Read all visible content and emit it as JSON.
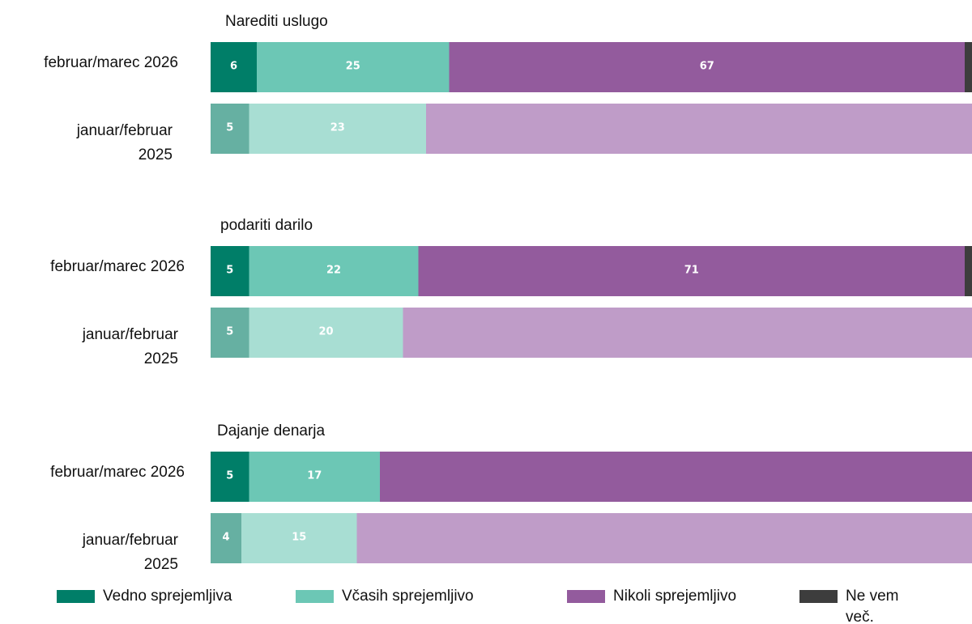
{
  "chart_data": [
    {
      "type": "bar",
      "title": "Narediti uslugo",
      "categories": [
        "februar/marec 2026",
        "januar/februar 2025"
      ],
      "xlim": [
        0,
        100
      ],
      "stacked": true,
      "orientation": "horizontal",
      "series": [
        {
          "name": "Vedno sprejemljiva",
          "colors": [
            "#007e68",
            "#66b0a2"
          ],
          "values": [
            6,
            5
          ]
        },
        {
          "name": "Včasih sprejemljivo",
          "colors": [
            "#6cc7b5",
            "#a8ded3"
          ],
          "values": [
            25,
            23
          ]
        },
        {
          "name": "Nikoli sprejemljivo",
          "colors": [
            "#935b9d",
            "#bf9cc8"
          ],
          "values": [
            67,
            71
          ]
        },
        {
          "name": "Ne vem več.",
          "colors": [
            "#3d3d3d",
            "#8a8a8a"
          ],
          "values": [
            2,
            1
          ]
        }
      ]
    },
    {
      "type": "bar",
      "title": "podariti darilo",
      "categories": [
        "februar/marec 2026",
        "januar/februar 2025"
      ],
      "xlim": [
        0,
        100
      ],
      "stacked": true,
      "orientation": "horizontal",
      "series": [
        {
          "colors": [
            "#007e68",
            "#66b0a2"
          ],
          "values": [
            5,
            5
          ]
        },
        {
          "colors": [
            "#6cc7b5",
            "#a8ded3"
          ],
          "values": [
            22,
            20
          ]
        },
        {
          "colors": [
            "#935b9d",
            "#bf9cc8"
          ],
          "values": [
            71,
            74
          ]
        },
        {
          "colors": [
            "#3d3d3d",
            "#8a8a8a"
          ],
          "values": [
            2,
            1
          ]
        }
      ]
    },
    {
      "type": "bar",
      "title": "Dajanje denarja",
      "categories": [
        "februar/marec 2026",
        "januar/februar 2025"
      ],
      "xlim": [
        0,
        100
      ],
      "stacked": true,
      "orientation": "horizontal",
      "series": [
        {
          "colors": [
            "#007e68",
            "#66b0a2"
          ],
          "values": [
            5,
            4
          ]
        },
        {
          "colors": [
            "#6cc7b5",
            "#a8ded3"
          ],
          "values": [
            17,
            15
          ]
        },
        {
          "colors": [
            "#935b9d",
            "#bf9cc8"
          ],
          "values": [
            77,
            80
          ]
        },
        {
          "colors": [
            "#3d3d3d",
            "#8a8a8a"
          ],
          "values": [
            1,
            1
          ]
        }
      ]
    }
  ]
}
